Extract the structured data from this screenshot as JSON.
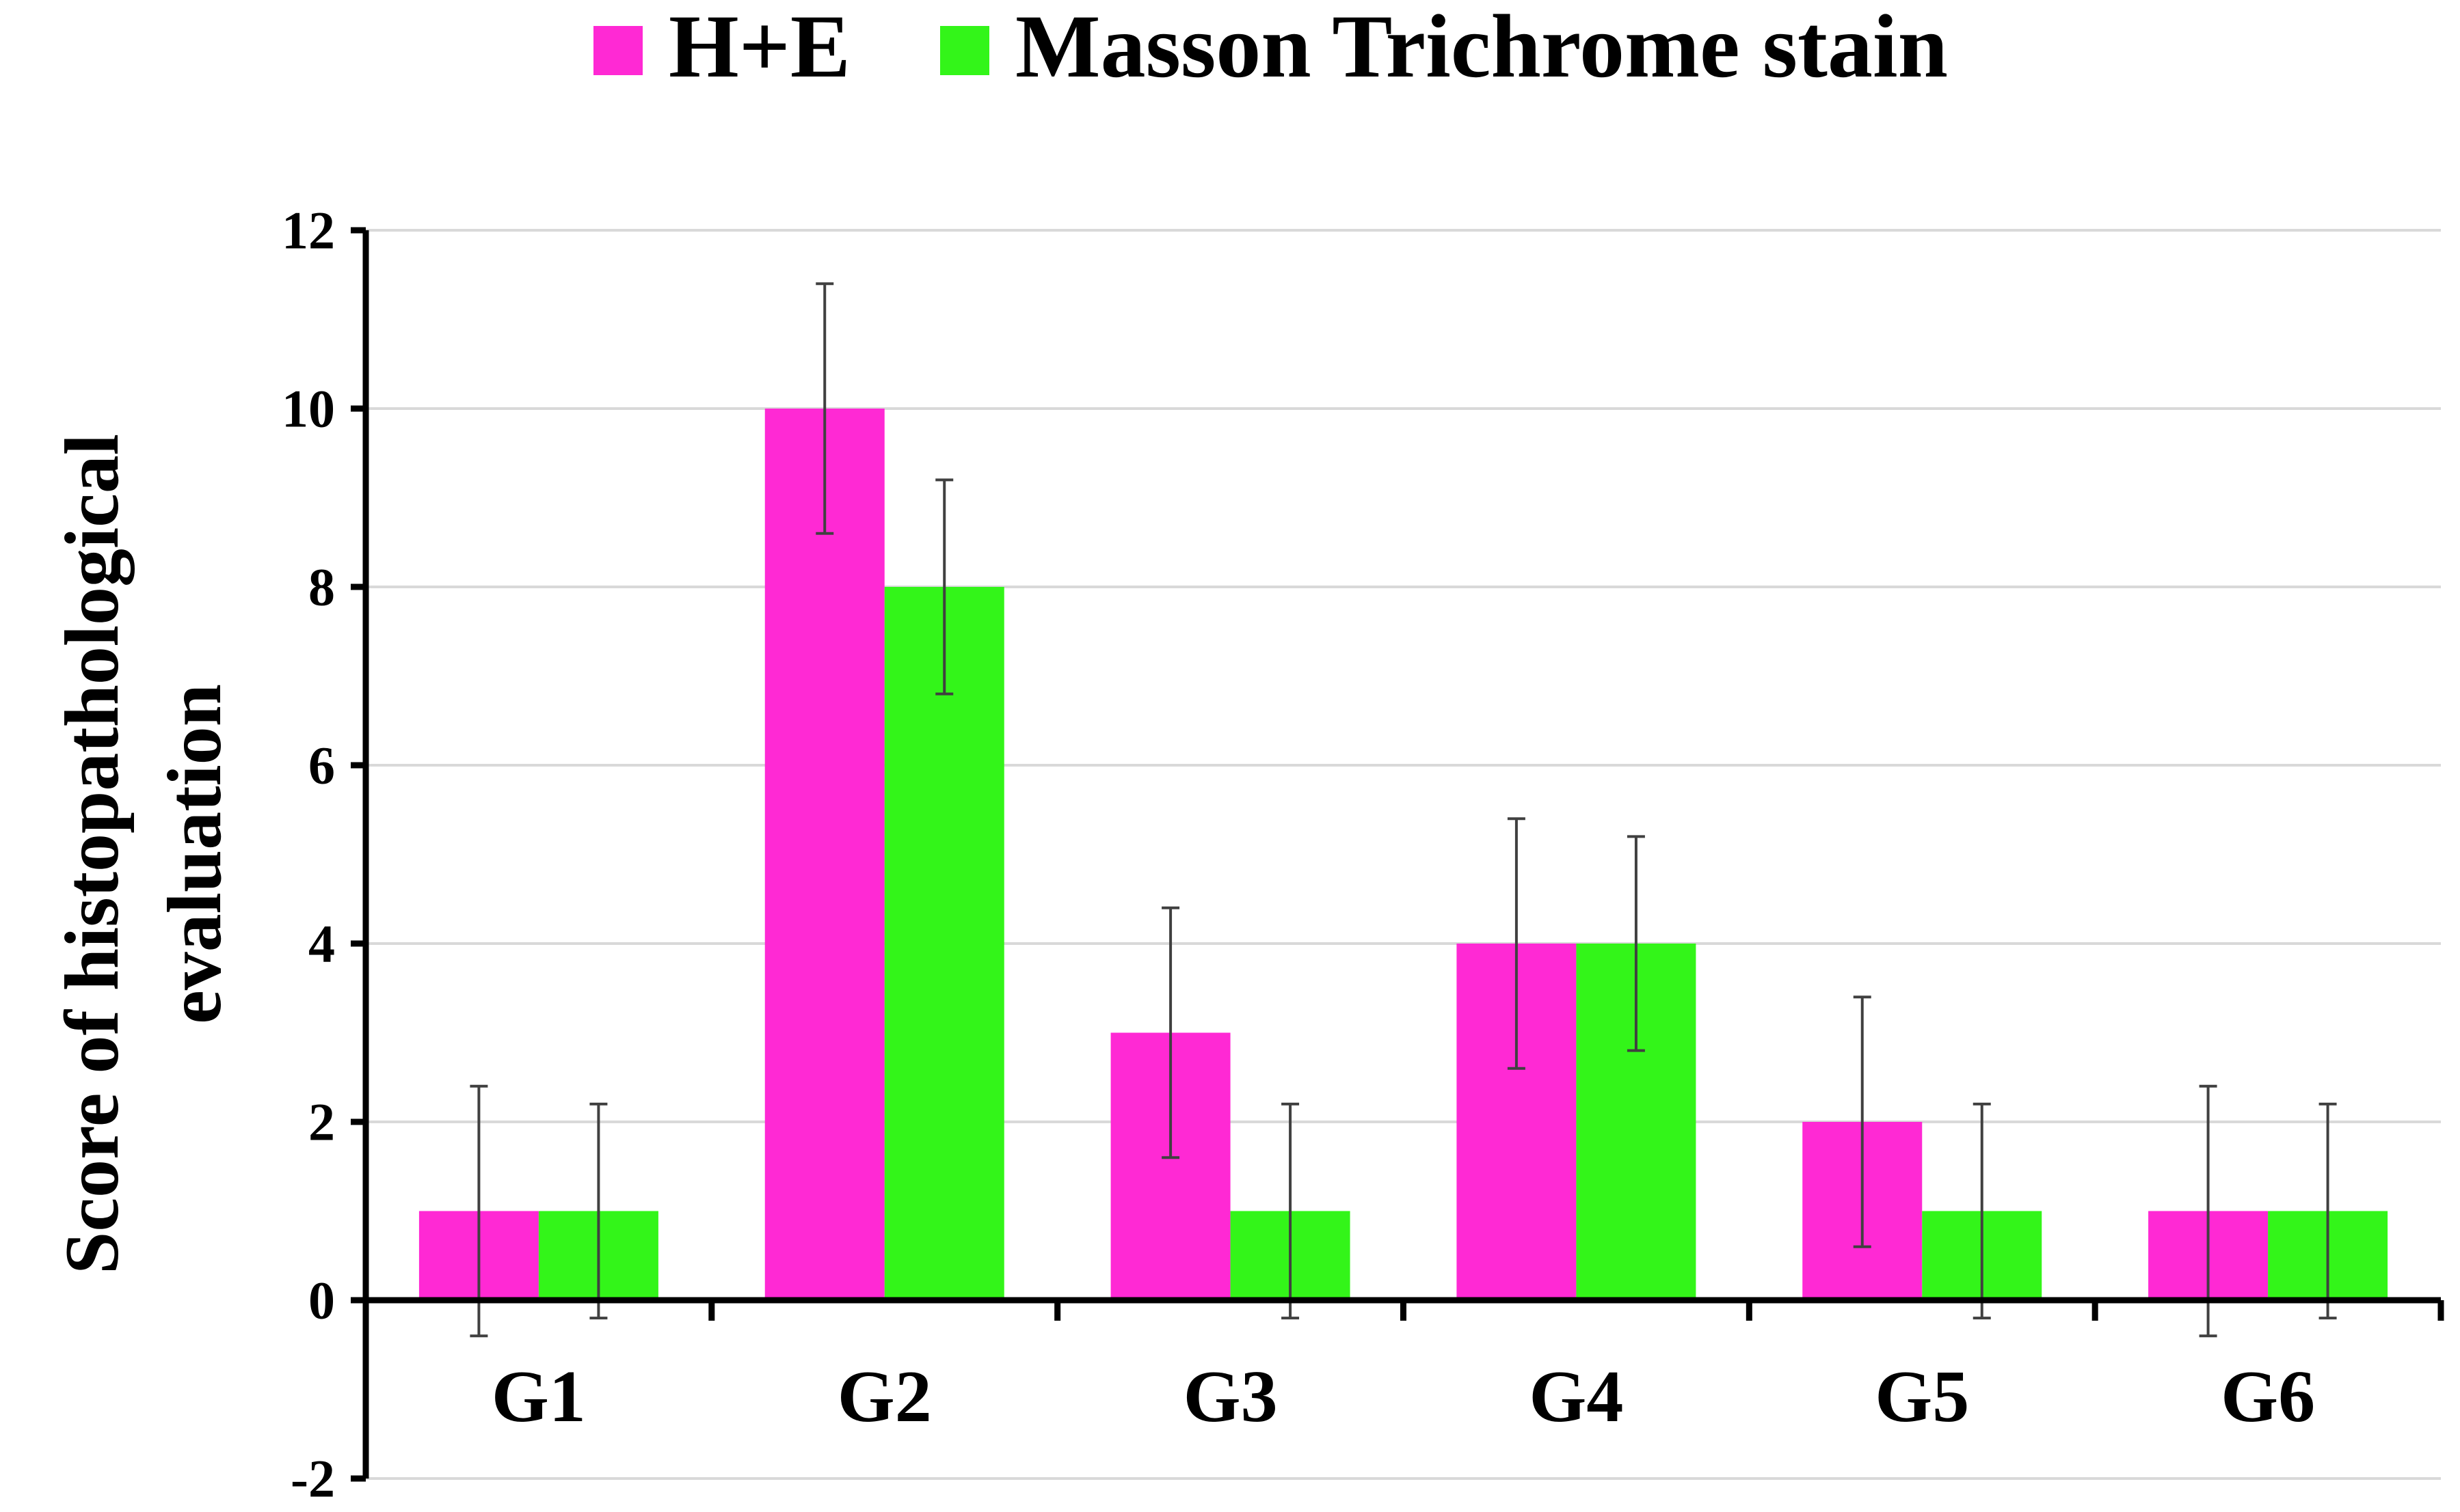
{
  "chart_data": {
    "type": "bar",
    "title": "",
    "xlabel": "",
    "ylabel": "Score of histopathological evaluation",
    "ylabel_lines": [
      "Score of histopathological",
      "evaluation"
    ],
    "categories": [
      "G1",
      "G2",
      "G3",
      "G4",
      "G5",
      "G6"
    ],
    "series": [
      {
        "name": "H+E",
        "color": "#ff29d4",
        "values": [
          1,
          10,
          3,
          4,
          2,
          1
        ],
        "errors": [
          1.4,
          1.4,
          1.4,
          1.4,
          1.4,
          1.4
        ]
      },
      {
        "name": "Masson Trichrome stain",
        "color": "#33f519",
        "values": [
          1,
          8,
          1,
          4,
          1,
          1
        ],
        "errors": [
          1.2,
          1.2,
          1.2,
          1.2,
          1.2,
          1.2
        ]
      }
    ],
    "ylim": [
      -2,
      12
    ],
    "yticks": [
      -2,
      0,
      2,
      4,
      6,
      8,
      10,
      12
    ],
    "grid": true,
    "legend": "top-center",
    "gridline_color": "#d9d9d9",
    "errorbar_color": "#404040",
    "axis_color": "#000000"
  }
}
